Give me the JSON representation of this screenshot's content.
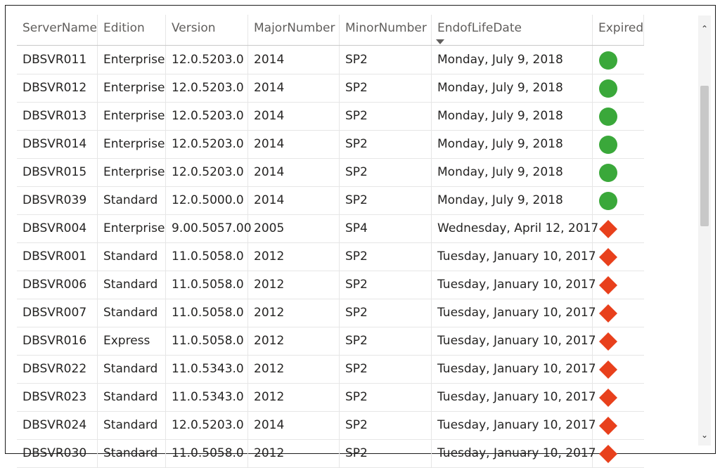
{
  "columns": [
    "ServerName",
    "Edition",
    "Version",
    "MajorNumber",
    "MinorNumber",
    "EndofLifeDate",
    "Expired"
  ],
  "sorted_column": "EndofLifeDate",
  "colors": {
    "ok": "#3aa83a",
    "expired": "#e8401c"
  },
  "rows": [
    {
      "server": "DBSVR011",
      "edition": "Enterprise",
      "version": "12.0.5203.0",
      "major": "2014",
      "minor": "SP2",
      "eol": "Monday, July 9, 2018",
      "status": "ok"
    },
    {
      "server": "DBSVR012",
      "edition": "Enterprise",
      "version": "12.0.5203.0",
      "major": "2014",
      "minor": "SP2",
      "eol": "Monday, July 9, 2018",
      "status": "ok"
    },
    {
      "server": "DBSVR013",
      "edition": "Enterprise",
      "version": "12.0.5203.0",
      "major": "2014",
      "minor": "SP2",
      "eol": "Monday, July 9, 2018",
      "status": "ok"
    },
    {
      "server": "DBSVR014",
      "edition": "Enterprise",
      "version": "12.0.5203.0",
      "major": "2014",
      "minor": "SP2",
      "eol": "Monday, July 9, 2018",
      "status": "ok"
    },
    {
      "server": "DBSVR015",
      "edition": "Enterprise",
      "version": "12.0.5203.0",
      "major": "2014",
      "minor": "SP2",
      "eol": "Monday, July 9, 2018",
      "status": "ok"
    },
    {
      "server": "DBSVR039",
      "edition": "Standard",
      "version": "12.0.5000.0",
      "major": "2014",
      "minor": "SP2",
      "eol": "Monday, July 9, 2018",
      "status": "ok"
    },
    {
      "server": "DBSVR004",
      "edition": "Enterprise",
      "version": "9.00.5057.00",
      "major": "2005",
      "minor": "SP4",
      "eol": "Wednesday, April 12, 2017",
      "status": "expired"
    },
    {
      "server": "DBSVR001",
      "edition": "Standard",
      "version": "11.0.5058.0",
      "major": "2012",
      "minor": "SP2",
      "eol": "Tuesday, January 10, 2017",
      "status": "expired"
    },
    {
      "server": "DBSVR006",
      "edition": "Standard",
      "version": "11.0.5058.0",
      "major": "2012",
      "minor": "SP2",
      "eol": "Tuesday, January 10, 2017",
      "status": "expired"
    },
    {
      "server": "DBSVR007",
      "edition": "Standard",
      "version": "11.0.5058.0",
      "major": "2012",
      "minor": "SP2",
      "eol": "Tuesday, January 10, 2017",
      "status": "expired"
    },
    {
      "server": "DBSVR016",
      "edition": "Express",
      "version": "11.0.5058.0",
      "major": "2012",
      "minor": "SP2",
      "eol": "Tuesday, January 10, 2017",
      "status": "expired"
    },
    {
      "server": "DBSVR022",
      "edition": "Standard",
      "version": "11.0.5343.0",
      "major": "2012",
      "minor": "SP2",
      "eol": "Tuesday, January 10, 2017",
      "status": "expired"
    },
    {
      "server": "DBSVR023",
      "edition": "Standard",
      "version": "11.0.5343.0",
      "major": "2012",
      "minor": "SP2",
      "eol": "Tuesday, January 10, 2017",
      "status": "expired"
    },
    {
      "server": "DBSVR024",
      "edition": "Standard",
      "version": "12.0.5203.0",
      "major": "2014",
      "minor": "SP2",
      "eol": "Tuesday, January 10, 2017",
      "status": "expired"
    },
    {
      "server": "DBSVR030",
      "edition": "Standard",
      "version": "11.0.5058.0",
      "major": "2012",
      "minor": "SP2",
      "eol": "Tuesday, January 10, 2017",
      "status": "expired"
    }
  ],
  "scroll": {
    "up_icon": "chevron-up-icon",
    "down_icon": "chevron-down-icon"
  }
}
